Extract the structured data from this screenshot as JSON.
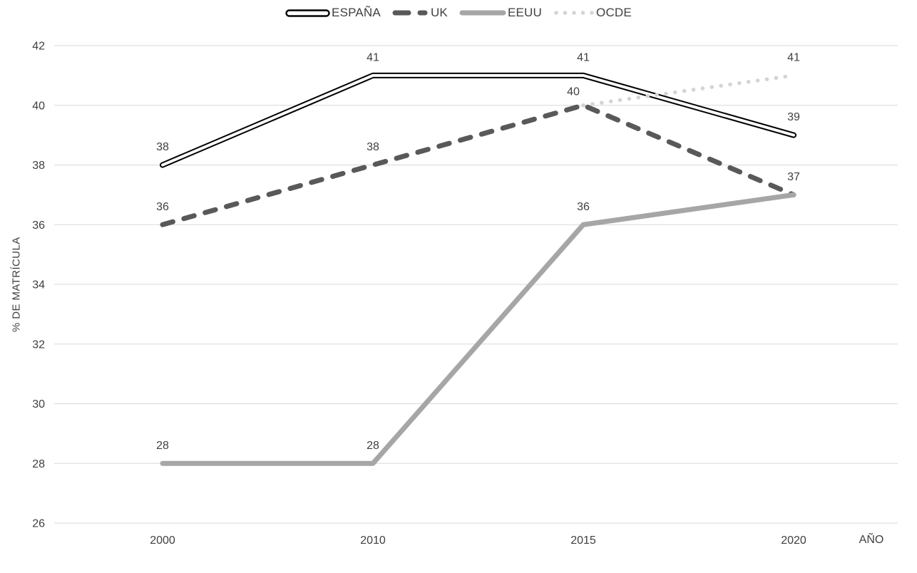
{
  "chart_data": {
    "type": "line",
    "categories": [
      "2000",
      "2010",
      "2015",
      "2020"
    ],
    "series": [
      {
        "name": "ESPAÑA",
        "values": [
          38,
          41,
          41,
          39
        ],
        "color": "#000000",
        "inner_color": "#ffffff",
        "style": "double"
      },
      {
        "name": "UK",
        "values": [
          36,
          38,
          40,
          37
        ],
        "color": "#595959",
        "style": "dashed"
      },
      {
        "name": "EEUU",
        "values": [
          28,
          28,
          36,
          37
        ],
        "color": "#a6a6a6",
        "style": "solid"
      },
      {
        "name": "OCDE",
        "values": [
          null,
          null,
          40,
          41
        ],
        "color": "#d4d4d4",
        "style": "dotted"
      }
    ],
    "data_labels": [
      {
        "text": "38",
        "x_index": 0,
        "value": 38
      },
      {
        "text": "36",
        "x_index": 0,
        "value": 36
      },
      {
        "text": "28",
        "x_index": 0,
        "value": 28
      },
      {
        "text": "41",
        "x_index": 1,
        "value": 41
      },
      {
        "text": "38",
        "x_index": 1,
        "value": 38
      },
      {
        "text": "28",
        "x_index": 1,
        "value": 28
      },
      {
        "text": "41",
        "x_index": 2,
        "value": 41
      },
      {
        "text": "40",
        "x_index": 2,
        "value": 40,
        "dx": -14,
        "dy": 6
      },
      {
        "text": "36",
        "x_index": 2,
        "value": 36
      },
      {
        "text": "41",
        "x_index": 3,
        "value": 41
      },
      {
        "text": "39",
        "x_index": 3,
        "value": 39
      },
      {
        "text": "37",
        "x_index": 3,
        "value": 37
      }
    ],
    "xlabel": "AÑO",
    "ylabel": "% DE MATRÍCULA",
    "ylim": [
      26,
      42
    ],
    "yticks": [
      42,
      40,
      38,
      36,
      34,
      32,
      30,
      28,
      26
    ],
    "legend_position": "top",
    "grid": "horizontal",
    "colors": {
      "axis_text": "#404040",
      "gridline": "#d9d9d9",
      "background": "#ffffff"
    }
  }
}
